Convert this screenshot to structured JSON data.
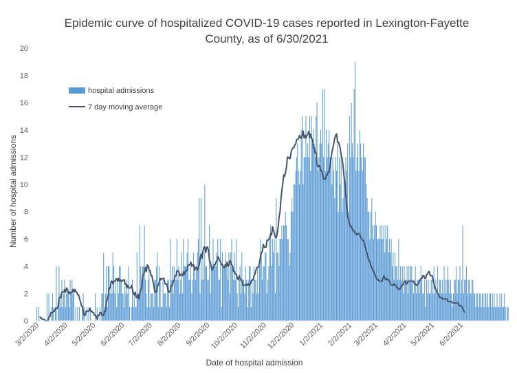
{
  "chart_data": {
    "type": "bar",
    "title_lines": [
      "Epidemic curve of hospitalized COVID-19 cases reported in Lexington-Fayette",
      "County, as of 6/30/2021"
    ],
    "xlabel": "Date of hospital admission",
    "ylabel": "Number of hospital admissions",
    "ylim": [
      0,
      20
    ],
    "yticks": [
      0,
      2,
      4,
      6,
      8,
      10,
      12,
      14,
      16,
      18,
      20
    ],
    "x_range": [
      "3/2/2020",
      "6/30/2021"
    ],
    "x_tick_labels": [
      "3/2/2020",
      "4/2/2020",
      "5/2/2020",
      "6/2/2020",
      "7/2/2020",
      "8/2/2020",
      "9/2/2020",
      "10/2/2020",
      "11/2/2020",
      "12/2/2020",
      "1/2/2021",
      "2/2/2021",
      "3/2/2021",
      "4/2/2021",
      "5/2/2021",
      "6/2/2021"
    ],
    "grid": false,
    "legend_position": "top-left",
    "colors": {
      "bars": "#5b9bd5",
      "line": "#44546a"
    },
    "series": [
      {
        "name": "hospital admissions",
        "type": "bar",
        "values": [
          1,
          0,
          1,
          0,
          0,
          0,
          0,
          0,
          0,
          0,
          0,
          2,
          0,
          2,
          0,
          0,
          1,
          2,
          1,
          0,
          1,
          4,
          0,
          1,
          4,
          2,
          1,
          3,
          1,
          2,
          3,
          1,
          2,
          2,
          2,
          1,
          3,
          2,
          3,
          2,
          2,
          0,
          1,
          0,
          1,
          0,
          1,
          0,
          0,
          1,
          2,
          1,
          0,
          0,
          1,
          0,
          1,
          0,
          1,
          0,
          0,
          0,
          0,
          2,
          0,
          1,
          0,
          0,
          1,
          0,
          2,
          2,
          5,
          1,
          2,
          4,
          1,
          4,
          4,
          2,
          3,
          2,
          5,
          4,
          2,
          3,
          1,
          3,
          2,
          4,
          4,
          3,
          2,
          2,
          1,
          3,
          2,
          3,
          2,
          4,
          1,
          0,
          1,
          3,
          1,
          2,
          1,
          1,
          5,
          2,
          2,
          7,
          4,
          3,
          4,
          4,
          7,
          3,
          2,
          1,
          3,
          4,
          1,
          2,
          2,
          2,
          1,
          3,
          3,
          4,
          5,
          1,
          4,
          3,
          1,
          1,
          3,
          2,
          2,
          2,
          1,
          3,
          3,
          1,
          6,
          3,
          4,
          2,
          4,
          3,
          3,
          6,
          3,
          4,
          2,
          3,
          5,
          2,
          6,
          4,
          4,
          4,
          5,
          6,
          3,
          3,
          4,
          2,
          3,
          5,
          4,
          3,
          4,
          5,
          6,
          9,
          2,
          9,
          3,
          5,
          3,
          10,
          4,
          4,
          3,
          3,
          7,
          2,
          4,
          4,
          6,
          4,
          4,
          4,
          5,
          6,
          3,
          3,
          6,
          1,
          5,
          4,
          4,
          5,
          4,
          4,
          3,
          5,
          2,
          5,
          6,
          4,
          3,
          5,
          3,
          6,
          2,
          1,
          3,
          4,
          2,
          5,
          3,
          3,
          2,
          4,
          3,
          1,
          3,
          4,
          4,
          1,
          3,
          2,
          4,
          3,
          3,
          2,
          4,
          2,
          4,
          6,
          5,
          3,
          4,
          4,
          5,
          5,
          2,
          3,
          4,
          6,
          7,
          4,
          6,
          5,
          6,
          2,
          9,
          5,
          5,
          4,
          6,
          6,
          7,
          6,
          7,
          7,
          8,
          7,
          6,
          6,
          4,
          5,
          8,
          9,
          8,
          10,
          10,
          11,
          12,
          13,
          11,
          10,
          11,
          14,
          15,
          10,
          12,
          12,
          15,
          12,
          13,
          12,
          15,
          11,
          15,
          13,
          14,
          13,
          12,
          15,
          16,
          11,
          12,
          13,
          14,
          13,
          17,
          12,
          17,
          11,
          14,
          12,
          13,
          14,
          12,
          12,
          10,
          12,
          11,
          9,
          12,
          11,
          13,
          8,
          12,
          10,
          12,
          8,
          9,
          11,
          10,
          12,
          11,
          13,
          8,
          15,
          12,
          16,
          13,
          12,
          17,
          19,
          11,
          12,
          13,
          11,
          14,
          13,
          12,
          11,
          13,
          12,
          12,
          10,
          9,
          8,
          8,
          6,
          8,
          9,
          7,
          6,
          7,
          8,
          7,
          6,
          6,
          6,
          7,
          6,
          7,
          6,
          7,
          5,
          7,
          6,
          7,
          5,
          6,
          5,
          6,
          4,
          5,
          3,
          5,
          4,
          4,
          3,
          6,
          3,
          4,
          3,
          4,
          2,
          4,
          3,
          3,
          4,
          2,
          4,
          3,
          4,
          4,
          3,
          2,
          3,
          4,
          2,
          3,
          3,
          2,
          3,
          4,
          3,
          2,
          2,
          3,
          1,
          3,
          2,
          3,
          2,
          2,
          3,
          3,
          2,
          4,
          2,
          3,
          2,
          4,
          2,
          3,
          3,
          2,
          3,
          2,
          4,
          3,
          2,
          3,
          4,
          3,
          2,
          3,
          2,
          1,
          2,
          3,
          3,
          4,
          2,
          3,
          3,
          4,
          2,
          3,
          7,
          2,
          3,
          3,
          4,
          2,
          3,
          3,
          2,
          2,
          3,
          3,
          2,
          2,
          1,
          2,
          2,
          1,
          2,
          2,
          1,
          2,
          2,
          1,
          2,
          2,
          1,
          2,
          1,
          2,
          2,
          1,
          2,
          1,
          2,
          1,
          1,
          2,
          1,
          1,
          2,
          1,
          2,
          1,
          1,
          2,
          1,
          0,
          1,
          1
        ]
      },
      {
        "name": "7 day moving average",
        "type": "line",
        "start_index": 3,
        "values": [
          0.3,
          0.2,
          0.2,
          0.1,
          0.1,
          0.1,
          0.0,
          0.0,
          0.0,
          0.0,
          0.3,
          0.3,
          0.6,
          0.6,
          0.6,
          0.7,
          0.7,
          0.9,
          0.9,
          0.9,
          1.1,
          1.7,
          1.7,
          1.7,
          2.1,
          2.1,
          2.1,
          2.3,
          2.1,
          2.4,
          2.3,
          2.0,
          2.1,
          2.0,
          2.1,
          2.1,
          2.3,
          2.1,
          2.3,
          2.1,
          2.1,
          1.9,
          1.9,
          1.6,
          1.4,
          1.1,
          1.0,
          0.7,
          0.4,
          0.4,
          0.7,
          0.7,
          0.7,
          0.7,
          0.9,
          0.7,
          0.7,
          0.6,
          0.6,
          0.4,
          0.4,
          0.3,
          0.1,
          0.4,
          0.4,
          0.6,
          0.6,
          0.4,
          0.4,
          0.4,
          0.7,
          0.7,
          1.4,
          1.6,
          1.9,
          2.4,
          2.4,
          2.9,
          2.9,
          2.7,
          2.9,
          2.9,
          3.0,
          3.1,
          2.9,
          3.1,
          2.9,
          3.0,
          2.9,
          2.9,
          3.0,
          3.0,
          2.7,
          2.7,
          2.4,
          2.6,
          2.4,
          2.4,
          2.4,
          2.6,
          2.3,
          2.0,
          1.9,
          2.1,
          1.7,
          1.7,
          1.9,
          1.6,
          2.1,
          2.3,
          2.4,
          3.3,
          3.4,
          3.6,
          3.9,
          3.6,
          4.1,
          4.0,
          3.7,
          3.7,
          3.3,
          3.3,
          2.9,
          2.6,
          2.1,
          2.1,
          2.1,
          2.6,
          2.6,
          2.9,
          3.1,
          3.0,
          3.1,
          3.1,
          3.1,
          2.7,
          2.7,
          2.7,
          2.3,
          2.1,
          2.1,
          2.3,
          2.6,
          2.6,
          2.9,
          3.0,
          3.3,
          3.3,
          3.7,
          3.6,
          3.6,
          3.3,
          3.4,
          3.4,
          3.3,
          3.6,
          3.4,
          3.6,
          3.7,
          3.7,
          4.1,
          4.1,
          4.1,
          4.3,
          4.0,
          4.1,
          4.1,
          3.7,
          3.9,
          3.9,
          3.7,
          3.9,
          4.1,
          4.6,
          4.9,
          4.6,
          5.1,
          5.4,
          5.4,
          5.0,
          5.4,
          5.4,
          5.1,
          4.4,
          4.3,
          3.9,
          3.7,
          3.9,
          4.1,
          4.1,
          4.3,
          4.4,
          4.7,
          4.6,
          4.4,
          4.3,
          4.1,
          4.1,
          3.9,
          3.9,
          4.1,
          4.0,
          4.3,
          4.0,
          4.1,
          4.4,
          4.3,
          4.1,
          4.0,
          3.6,
          3.6,
          3.4,
          3.4,
          3.1,
          3.0,
          3.3,
          3.1,
          3.0,
          2.9,
          2.6,
          2.6,
          2.6,
          2.6,
          2.7,
          2.6,
          2.7,
          2.6,
          2.7,
          2.9,
          3.0,
          3.0,
          3.3,
          3.4,
          3.7,
          3.9,
          3.9,
          4.0,
          4.3,
          4.7,
          5.0,
          5.1,
          5.6,
          5.4,
          5.4,
          5.4,
          5.9,
          5.9,
          6.0,
          6.1,
          6.4,
          6.3,
          6.9,
          6.6,
          6.4,
          6.1,
          6.1,
          6.4,
          6.9,
          7.6,
          8.0,
          8.9,
          9.6,
          10.1,
          10.7,
          10.6,
          10.9,
          11.3,
          12.0,
          12.0,
          11.9,
          11.9,
          12.4,
          12.6,
          12.7,
          12.7,
          12.9,
          13.0,
          13.3,
          13.3,
          13.4,
          13.6,
          13.4,
          13.4,
          13.6,
          13.9,
          13.4,
          13.6,
          13.4,
          13.6,
          13.7,
          13.9,
          13.4,
          13.7,
          13.4,
          13.3,
          12.7,
          12.7,
          12.3,
          12.3,
          11.4,
          11.3,
          11.4,
          11.3,
          11.0,
          11.0,
          10.7,
          10.4,
          10.4,
          10.4,
          10.7,
          10.7,
          10.9,
          10.9,
          11.4,
          11.9,
          12.4,
          12.7,
          13.0,
          13.4,
          13.6,
          13.7,
          13.1,
          13.1,
          12.9,
          12.6,
          12.1,
          11.9,
          11.3,
          10.6,
          10.0,
          9.1,
          8.3,
          7.6,
          7.4,
          7.1,
          6.9,
          6.9,
          6.7,
          6.6,
          6.6,
          6.4,
          6.4,
          6.3,
          6.4,
          6.4,
          6.3,
          6.1,
          6.0,
          5.9,
          5.9,
          5.6,
          5.4,
          5.1,
          4.9,
          4.6,
          4.4,
          4.3,
          4.0,
          3.9,
          3.7,
          3.6,
          3.4,
          3.3,
          3.1,
          3.0,
          3.0,
          2.9,
          2.9,
          2.9,
          2.9,
          3.1,
          3.3,
          3.1,
          3.0,
          3.1,
          3.0,
          3.0,
          2.9,
          2.7,
          2.6,
          2.6,
          2.6,
          2.7,
          2.6,
          2.6,
          2.4,
          2.4,
          2.3,
          2.3,
          2.4,
          2.6,
          2.6,
          2.7,
          2.9,
          2.9,
          2.7,
          2.7,
          2.9,
          2.9,
          2.9,
          2.9,
          2.9,
          2.9,
          2.9,
          2.7,
          2.7,
          2.6,
          2.6,
          2.7,
          2.9,
          3.0,
          3.1,
          3.1,
          3.3,
          3.3,
          3.1,
          3.1,
          3.4,
          3.4,
          3.6,
          3.6,
          3.3,
          3.3,
          3.3,
          3.0,
          2.7,
          2.4,
          2.3,
          2.1,
          2.0,
          1.9,
          1.7,
          1.7,
          1.7,
          1.6,
          1.6,
          1.6,
          1.6,
          1.6,
          1.6,
          1.4,
          1.4,
          1.4,
          1.4,
          1.4,
          1.3,
          1.3,
          1.3,
          1.3,
          1.3,
          1.3,
          1.3,
          1.1,
          1.1,
          1.1,
          1.0,
          0.9,
          0.7,
          0.6
        ]
      }
    ]
  }
}
